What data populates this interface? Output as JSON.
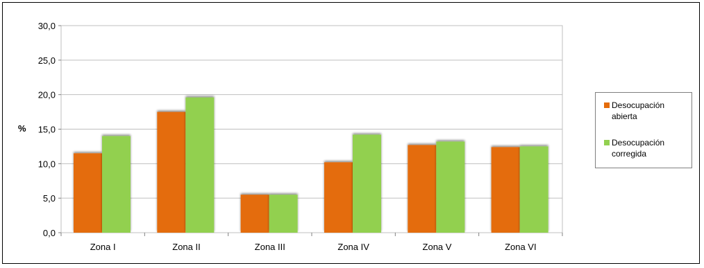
{
  "chart_data": {
    "type": "bar",
    "title": "",
    "xlabel": "",
    "ylabel": "%",
    "ylim": [
      0,
      30
    ],
    "yticks": [
      "0,0",
      "5,0",
      "10,0",
      "15,0",
      "20,0",
      "25,0",
      "30,0"
    ],
    "categories": [
      "Zona I",
      "Zona II",
      "Zona III",
      "Zona IV",
      "Zona V",
      "Zona VI"
    ],
    "series": [
      {
        "name": "Desocupación abierta",
        "color": "#e46c0a",
        "values": [
          11.5,
          17.5,
          5.5,
          10.2,
          12.7,
          12.4
        ]
      },
      {
        "name": "Desocupación corregida",
        "color": "#92d050",
        "values": [
          14.0,
          19.6,
          5.5,
          14.2,
          13.2,
          12.5
        ]
      }
    ],
    "grid": true,
    "legend_position": "right"
  }
}
